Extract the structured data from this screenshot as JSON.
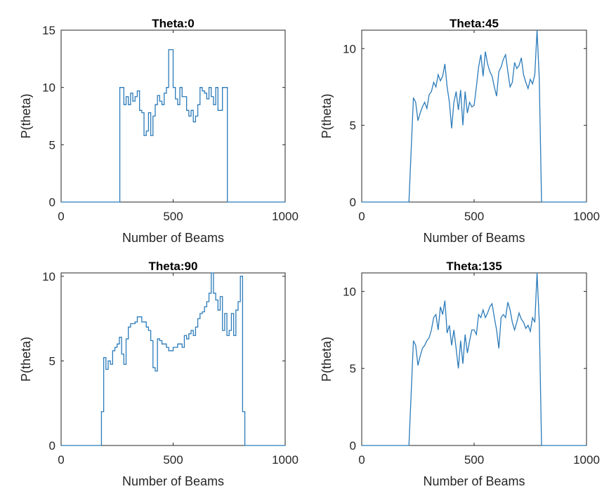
{
  "figure": {
    "line_color": "#2b7bba",
    "axis_color": "#262626"
  },
  "chart_data": [
    {
      "type": "line",
      "title": "Theta:0",
      "xlabel": "Number of Beams",
      "ylabel": "P(theta)",
      "xlim": [
        0,
        1000
      ],
      "ylim": [
        0,
        15
      ],
      "xticks": [
        0,
        500,
        1000
      ],
      "yticks": [
        0,
        5,
        10,
        15
      ],
      "xtick_labels": [
        "0",
        "500",
        "1000"
      ],
      "ytick_labels": [
        "0",
        "5",
        "10",
        "15"
      ],
      "grid": false,
      "step": true,
      "x": [
        0,
        260,
        262,
        270,
        280,
        290,
        300,
        310,
        320,
        330,
        340,
        350,
        360,
        370,
        380,
        390,
        400,
        410,
        420,
        430,
        440,
        450,
        460,
        470,
        480,
        490,
        500,
        510,
        520,
        530,
        540,
        550,
        560,
        570,
        580,
        590,
        600,
        610,
        620,
        630,
        640,
        650,
        660,
        670,
        680,
        690,
        700,
        710,
        720,
        730,
        740,
        742,
        1000
      ],
      "y": [
        0,
        0,
        10,
        10,
        8.5,
        9.2,
        8.5,
        9.5,
        8.8,
        9.2,
        9.7,
        8,
        7.8,
        5.8,
        6.2,
        7.8,
        5.8,
        7.5,
        8.5,
        9.3,
        8.8,
        8.5,
        9.5,
        10,
        13.3,
        13.3,
        10,
        9,
        8.5,
        10,
        9.2,
        9.2,
        8,
        7.5,
        8,
        7,
        7.5,
        8.5,
        10,
        9.7,
        9.5,
        9,
        10,
        9.2,
        8.5,
        10,
        8,
        8,
        10,
        10,
        10,
        0,
        0
      ]
    },
    {
      "type": "line",
      "title": "Theta:45",
      "xlabel": "Number of Beams",
      "ylabel": "P(theta)",
      "xlim": [
        0,
        1000
      ],
      "ylim": [
        0,
        11.2
      ],
      "xticks": [
        0,
        500,
        1000
      ],
      "yticks": [
        0,
        5,
        10
      ],
      "xtick_labels": [
        "0",
        "500",
        "1000"
      ],
      "ytick_labels": [
        "0",
        "5",
        "10"
      ],
      "grid": false,
      "step": false,
      "x": [
        0,
        210,
        230,
        240,
        250,
        260,
        270,
        280,
        290,
        300,
        310,
        320,
        330,
        340,
        350,
        360,
        370,
        380,
        390,
        400,
        410,
        420,
        430,
        440,
        450,
        460,
        470,
        480,
        490,
        500,
        510,
        520,
        530,
        540,
        550,
        560,
        570,
        580,
        590,
        600,
        610,
        620,
        630,
        640,
        650,
        660,
        670,
        680,
        690,
        700,
        710,
        720,
        730,
        740,
        750,
        760,
        770,
        780,
        790,
        800,
        1000
      ],
      "y": [
        0,
        0,
        6.8,
        6.5,
        5.3,
        5.8,
        6.2,
        6.5,
        6.1,
        7,
        7.2,
        7.8,
        7.5,
        8.3,
        7.9,
        8.2,
        9,
        7.5,
        6.5,
        4.8,
        6.5,
        7.2,
        6,
        7.3,
        5,
        7.2,
        5.8,
        6.5,
        6.2,
        6.3,
        7.5,
        8.8,
        9.6,
        8.2,
        9.8,
        9,
        8.5,
        8.2,
        7.5,
        6.9,
        8.5,
        8.8,
        9.3,
        9.6,
        8.5,
        7.5,
        7.8,
        9.1,
        8.7,
        8.9,
        9.4,
        8.3,
        7.8,
        7.4,
        8,
        7.7,
        8.3,
        11.2,
        8,
        0,
        0
      ]
    },
    {
      "type": "line",
      "title": "Theta:90",
      "xlabel": "Number of Beams",
      "ylabel": "P(theta)",
      "xlim": [
        0,
        1000
      ],
      "ylim": [
        0,
        10.2
      ],
      "xticks": [
        0,
        500,
        1000
      ],
      "yticks": [
        0,
        5,
        10
      ],
      "xtick_labels": [
        "0",
        "500",
        "1000"
      ],
      "ytick_labels": [
        "0",
        "5",
        "10"
      ],
      "grid": false,
      "step": true,
      "x": [
        0,
        175,
        180,
        190,
        200,
        210,
        220,
        230,
        240,
        250,
        260,
        270,
        280,
        290,
        300,
        310,
        320,
        330,
        340,
        350,
        360,
        370,
        380,
        390,
        400,
        410,
        420,
        430,
        440,
        450,
        460,
        470,
        480,
        490,
        500,
        510,
        520,
        530,
        540,
        550,
        560,
        570,
        580,
        590,
        600,
        610,
        620,
        630,
        640,
        650,
        660,
        670,
        680,
        690,
        700,
        710,
        720,
        730,
        740,
        750,
        760,
        770,
        780,
        790,
        800,
        810,
        820,
        830,
        1000
      ],
      "y": [
        0,
        0,
        2,
        5.2,
        4.5,
        5,
        4.8,
        5.6,
        5.8,
        6,
        6.4,
        5.4,
        4.8,
        6.3,
        7,
        7.2,
        7.2,
        7.3,
        7.6,
        7.6,
        7.3,
        7.3,
        7,
        6.8,
        6.2,
        4.6,
        4.4,
        6.3,
        6.2,
        6,
        6,
        5.8,
        5.6,
        5.6,
        5.8,
        5.8,
        6,
        6,
        5.8,
        6.5,
        6.3,
        6.6,
        6.8,
        6.5,
        7,
        7.5,
        7.8,
        7.9,
        8.2,
        8.5,
        9,
        10.2,
        9,
        8.6,
        8,
        8.8,
        6.8,
        7.8,
        6.5,
        6.8,
        7.8,
        6.5,
        8,
        8.5,
        10,
        2,
        0,
        0,
        0
      ],
      "_note": ""
    },
    {
      "type": "line",
      "title": "Theta:135",
      "xlabel": "Number of Beams",
      "ylabel": "P(theta)",
      "xlim": [
        0,
        1000
      ],
      "ylim": [
        0,
        11.2
      ],
      "xticks": [
        0,
        500,
        1000
      ],
      "yticks": [
        0,
        5,
        10
      ],
      "xtick_labels": [
        "0",
        "500",
        "1000"
      ],
      "ytick_labels": [
        "0",
        "5",
        "10"
      ],
      "grid": false,
      "step": false,
      "x": [
        0,
        210,
        230,
        240,
        250,
        260,
        270,
        280,
        290,
        300,
        310,
        320,
        330,
        340,
        350,
        360,
        370,
        380,
        390,
        400,
        410,
        420,
        430,
        440,
        450,
        460,
        470,
        480,
        490,
        500,
        510,
        520,
        530,
        540,
        550,
        560,
        570,
        580,
        590,
        600,
        610,
        620,
        630,
        640,
        650,
        660,
        670,
        680,
        690,
        700,
        710,
        720,
        730,
        740,
        750,
        760,
        770,
        780,
        790,
        800,
        1000
      ],
      "y": [
        0,
        0,
        6.8,
        6.5,
        5.2,
        5.8,
        6.3,
        6.5,
        6.8,
        7,
        7.5,
        8.3,
        8.5,
        7.5,
        9,
        8.5,
        9.4,
        7.3,
        7.8,
        6.5,
        7.5,
        6.3,
        5,
        6.8,
        5.3,
        7.2,
        6,
        6.8,
        7.5,
        7.5,
        7.2,
        8.5,
        8.3,
        8.8,
        8.3,
        8.6,
        9,
        9.2,
        8.3,
        7.5,
        6.3,
        8.3,
        8.5,
        8.3,
        9.3,
        8.8,
        8,
        7.5,
        8,
        8.6,
        8.2,
        8,
        7.6,
        7.8,
        7.4,
        8.3,
        8,
        11.2,
        8,
        0,
        0
      ]
    }
  ]
}
